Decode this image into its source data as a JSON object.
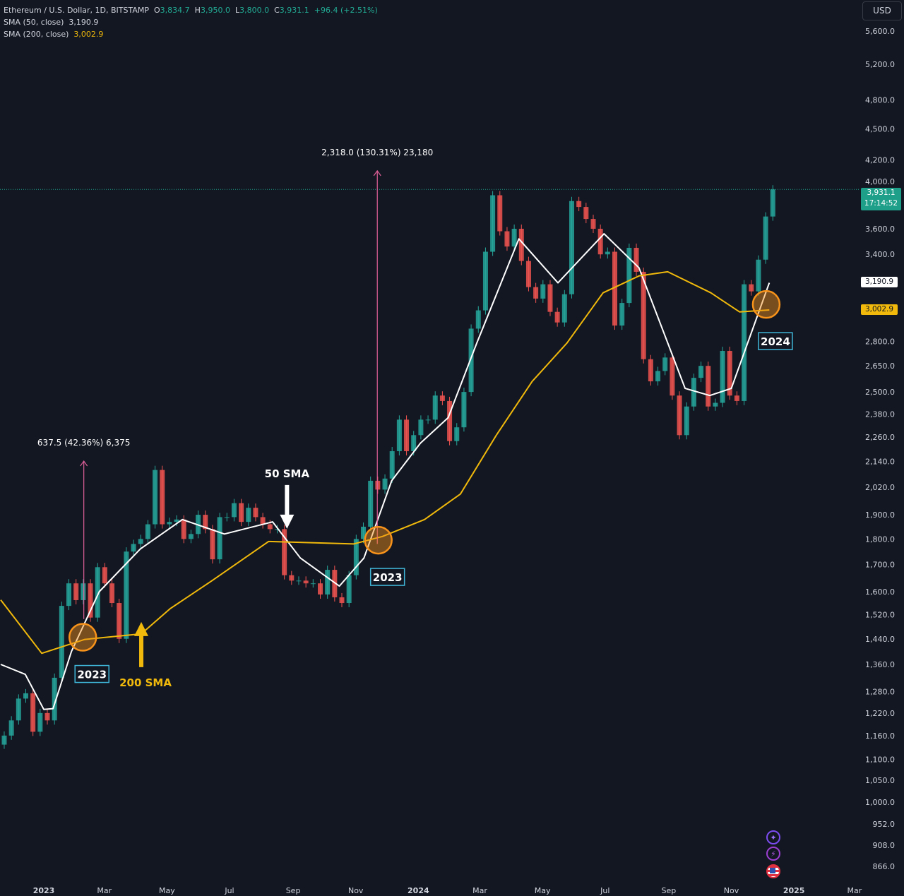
{
  "legend": {
    "symbol": "Ethereum / U.S. Dollar, 1D, BITSTAMP",
    "open_label": "O",
    "open": "3,834.7",
    "high_label": "H",
    "high": "3,950.0",
    "low_label": "L",
    "low": "3,800.0",
    "close_label": "C",
    "close": "3,931.1",
    "change": "+96.4 (+2.51%)",
    "sma50_label": "SMA (50, close)",
    "sma50_value": "3,190.9",
    "sma200_label": "SMA (200, close)",
    "sma200_value": "3,002.9"
  },
  "currency_button": "USD",
  "last_price": {
    "price": "3,931.1",
    "countdown": "17:14:52"
  },
  "colors": {
    "up": "#26a69a",
    "down": "#ef5350",
    "sma50": "#ffffff",
    "sma200": "#f0b90b",
    "measure": "#e0609a",
    "circle": "#f7931a",
    "background": "#131722"
  },
  "side_icons": [
    "sparkle-icon",
    "lightning-icon",
    "us-flag-icon"
  ],
  "chart_data": {
    "type": "candlestick",
    "y_scale": "log",
    "ylim": [
      840,
      5800
    ],
    "xlim": [
      "2022-11-20",
      "2025-04-01"
    ],
    "grid": false,
    "y_ticks": [
      5600,
      5200,
      4800,
      4500,
      4200,
      4000,
      3600,
      3400,
      2800,
      2650,
      2500,
      2380,
      2260,
      2140,
      2020,
      1900,
      1800,
      1700,
      1600,
      1520,
      1440,
      1360,
      1280,
      1220,
      1160,
      1100,
      1050,
      1000,
      952,
      908,
      866
    ],
    "y_tick_labels": [
      "5,600.0",
      "5,200.0",
      "4,800.0",
      "4,500.0",
      "4,200.0",
      "4,000.0",
      "3,600.0",
      "3,400.0",
      "2,800.0",
      "2,650.0",
      "2,500.0",
      "2,380.0",
      "2,260.0",
      "2,140.0",
      "2,020.0",
      "1,900.0",
      "1,800.0",
      "1,700.0",
      "1,600.0",
      "1,520.0",
      "1,440.0",
      "1,360.0",
      "1,280.0",
      "1,220.0",
      "1,160.0",
      "1,100.0",
      "1,050.0",
      "1,000.0",
      "952.0",
      "908.0",
      "866.0"
    ],
    "x_ticks": [
      {
        "date": "2023-01-01",
        "label": "2023",
        "bold": true
      },
      {
        "date": "2023-03-01",
        "label": "Mar"
      },
      {
        "date": "2023-05-01",
        "label": "May"
      },
      {
        "date": "2023-07-01",
        "label": "Jul"
      },
      {
        "date": "2023-09-01",
        "label": "Sep"
      },
      {
        "date": "2023-11-01",
        "label": "Nov"
      },
      {
        "date": "2024-01-01",
        "label": "2024",
        "bold": true
      },
      {
        "date": "2024-03-01",
        "label": "Mar"
      },
      {
        "date": "2024-05-01",
        "label": "May"
      },
      {
        "date": "2024-07-01",
        "label": "Jul"
      },
      {
        "date": "2024-09-01",
        "label": "Sep"
      },
      {
        "date": "2024-11-01",
        "label": "Nov"
      },
      {
        "date": "2025-01-01",
        "label": "2025",
        "bold": true
      },
      {
        "date": "2025-03-01",
        "label": "Mar"
      }
    ],
    "weekly_closes": {
      "start": "2022-11-20",
      "values": [
        1160,
        1200,
        1260,
        1275,
        1170,
        1220,
        1200,
        1320,
        1550,
        1630,
        1570,
        1630,
        1510,
        1690,
        1630,
        1560,
        1440,
        1750,
        1780,
        1800,
        1860,
        2100,
        1860,
        1870,
        1880,
        1800,
        1820,
        1900,
        1840,
        1720,
        1890,
        1890,
        1950,
        1870,
        1930,
        1890,
        1860,
        1840,
        1840,
        1660,
        1640,
        1640,
        1630,
        1630,
        1590,
        1680,
        1580,
        1560,
        1660,
        1800,
        1850,
        2050,
        2010,
        2060,
        2190,
        2350,
        2190,
        2270,
        2350,
        2350,
        2480,
        2450,
        2240,
        2310,
        2500,
        2880,
        3000,
        3420,
        3880,
        3580,
        3460,
        3600,
        3350,
        3160,
        3080,
        3180,
        2990,
        2920,
        3110,
        3830,
        3780,
        3680,
        3600,
        3400,
        3420,
        2900,
        3050,
        3450,
        3270,
        2690,
        2560,
        2620,
        2700,
        2480,
        2270,
        2420,
        2580,
        2650,
        2420,
        2440,
        2740,
        2480,
        2450,
        3180,
        3130,
        3360,
        3700,
        3931.1
      ]
    },
    "series": [
      {
        "name": "SMA (50, close)",
        "points": [
          [
            "2022-11-20",
            1360
          ],
          [
            "2022-12-14",
            1330
          ],
          [
            "2023-01-01",
            1230
          ],
          [
            "2023-01-10",
            1232
          ],
          [
            "2023-01-28",
            1400
          ],
          [
            "2023-02-24",
            1600
          ],
          [
            "2023-04-05",
            1760
          ],
          [
            "2023-05-16",
            1880
          ],
          [
            "2023-06-26",
            1820
          ],
          [
            "2023-08-12",
            1870
          ],
          [
            "2023-09-08",
            1725
          ],
          [
            "2023-10-16",
            1620
          ],
          [
            "2023-11-09",
            1725
          ],
          [
            "2023-12-06",
            2050
          ],
          [
            "2024-01-03",
            2230
          ],
          [
            "2024-01-30",
            2360
          ],
          [
            "2024-02-27",
            2790
          ],
          [
            "2024-04-08",
            3520
          ],
          [
            "2024-05-16",
            3190
          ],
          [
            "2024-06-30",
            3560
          ],
          [
            "2024-08-03",
            3300
          ],
          [
            "2024-09-17",
            2520
          ],
          [
            "2024-10-11",
            2480
          ],
          [
            "2024-11-01",
            2520
          ],
          [
            "2024-12-08",
            3190.9
          ]
        ]
      },
      {
        "name": "SMA (200, close)",
        "points": [
          [
            "2022-11-20",
            1571
          ],
          [
            "2022-12-30",
            1394
          ],
          [
            "2023-02-10",
            1438
          ],
          [
            "2023-04-06",
            1456
          ],
          [
            "2023-05-04",
            1540
          ],
          [
            "2023-06-14",
            1640
          ],
          [
            "2023-08-08",
            1790
          ],
          [
            "2023-10-30",
            1780
          ],
          [
            "2023-11-27",
            1810
          ],
          [
            "2024-01-07",
            1880
          ],
          [
            "2024-02-11",
            1990
          ],
          [
            "2024-03-17",
            2270
          ],
          [
            "2024-04-21",
            2560
          ],
          [
            "2024-05-25",
            2790
          ],
          [
            "2024-06-29",
            3120
          ],
          [
            "2024-08-03",
            3240
          ],
          [
            "2024-08-31",
            3270
          ],
          [
            "2024-10-12",
            3120
          ],
          [
            "2024-11-09",
            2990
          ],
          [
            "2024-12-08",
            3002.9
          ]
        ]
      }
    ],
    "measurements": [
      {
        "label": "637.5 (42.36%) 6,375",
        "date": "2023-02-09",
        "from": 1505,
        "to": 2142
      },
      {
        "label": "2,318.0 (130.31%) 23,180",
        "date": "2023-11-22",
        "from": 1780,
        "to": 4098
      }
    ],
    "crossovers": [
      {
        "date": "2023-02-08",
        "price": 1445,
        "label": "2023"
      },
      {
        "date": "2023-11-23",
        "price": 1795,
        "label": "2023"
      },
      {
        "date": "2024-12-05",
        "price": 3040,
        "label": "2024"
      }
    ],
    "annotations": [
      {
        "text": "50 SMA",
        "arrow": "down",
        "date": "2023-08-26",
        "price": 1830
      },
      {
        "text": "200 SMA",
        "arrow": "up",
        "date": "2023-04-06",
        "price": 1500
      }
    ],
    "last_price_line": 3931.1
  }
}
